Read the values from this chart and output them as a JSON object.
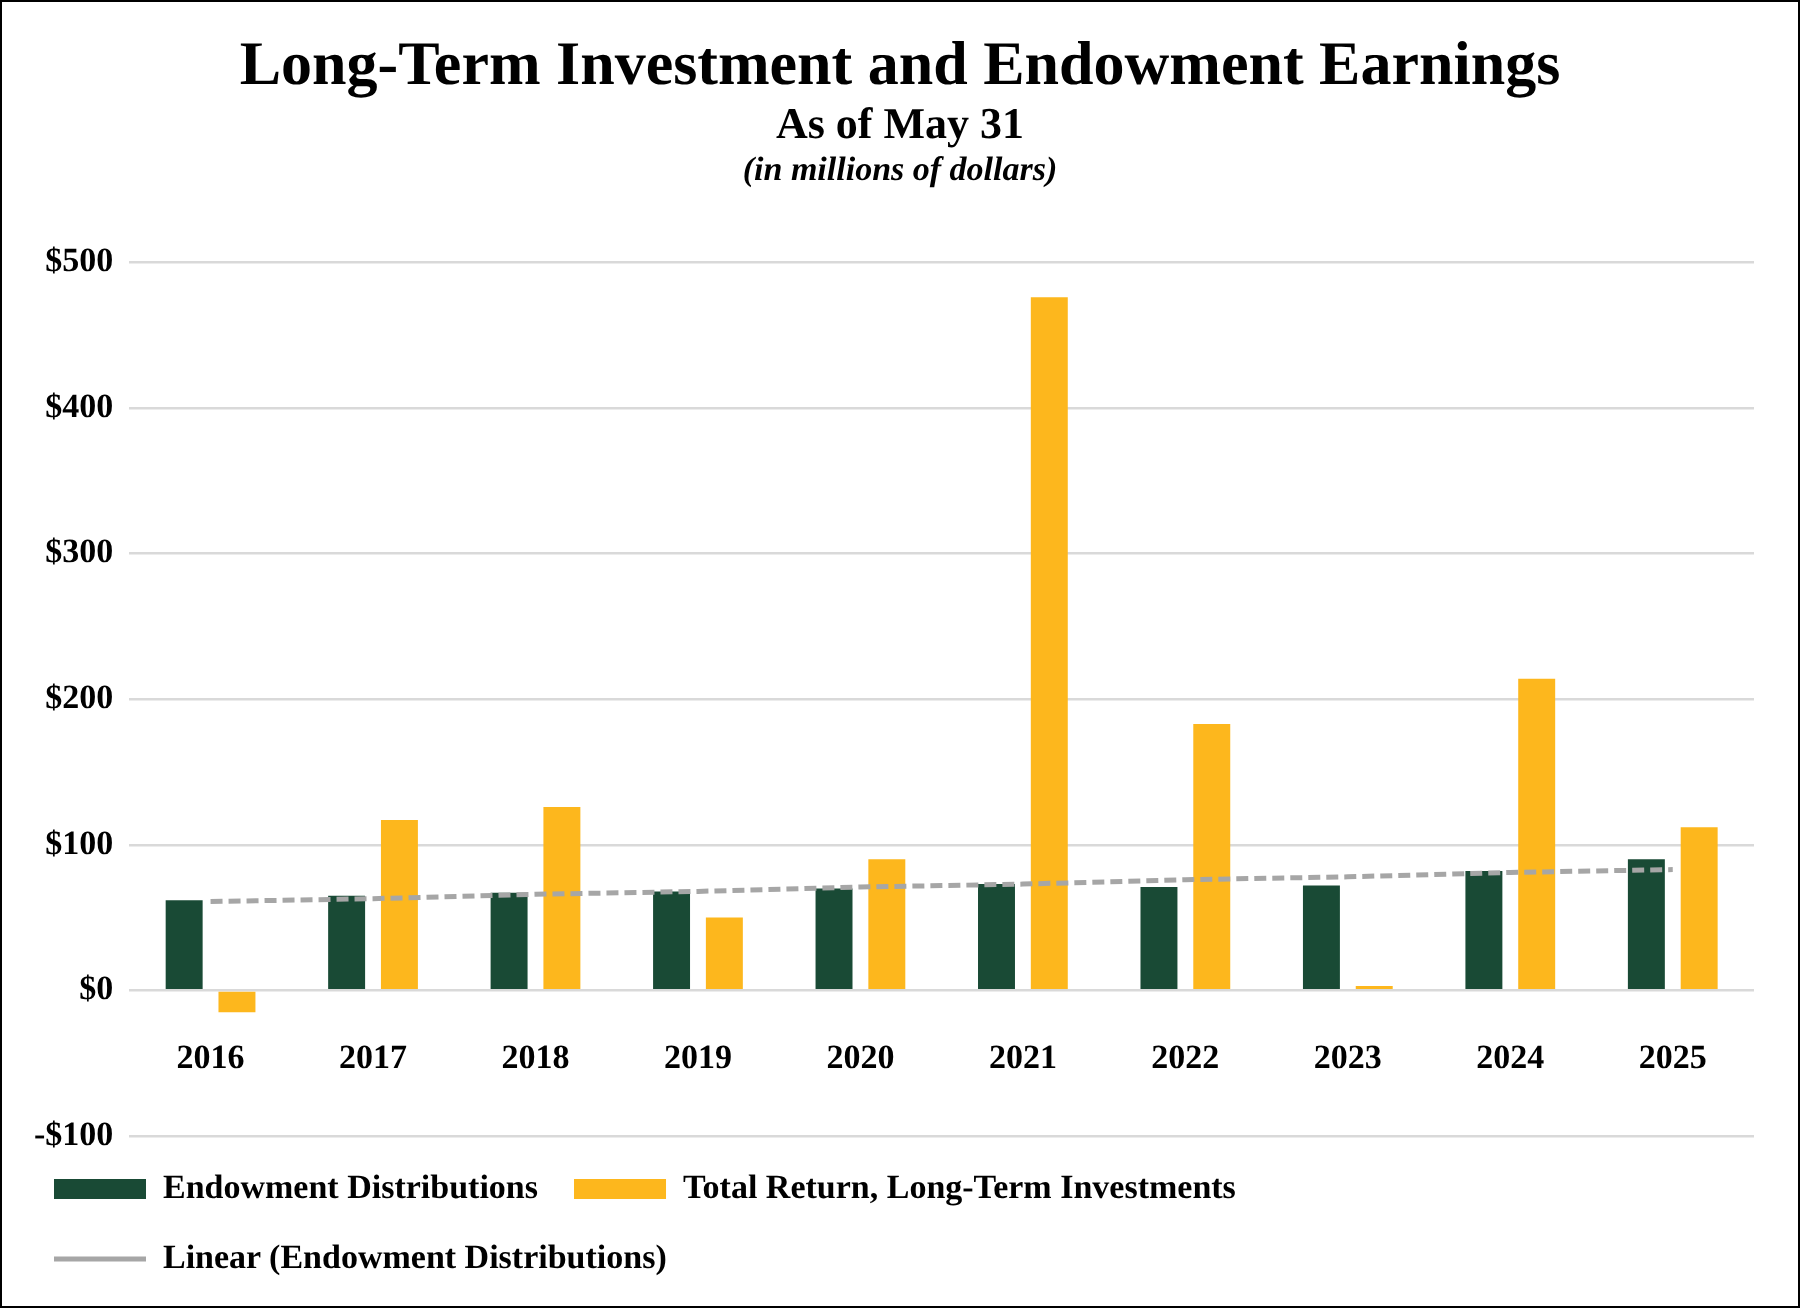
{
  "chart_data": {
    "type": "bar",
    "title": "Long-Term Investment and Endowment Earnings",
    "subtitle": "As of May 31",
    "annotations": [
      "(in millions of dollars)"
    ],
    "categories": [
      "2016",
      "2017",
      "2018",
      "2019",
      "2020",
      "2021",
      "2022",
      "2023",
      "2024",
      "2025"
    ],
    "series": [
      {
        "name": "Endowment Distributions",
        "color": "#194a35",
        "values": [
          62,
          65,
          67,
          68,
          70,
          73,
          71,
          72,
          82,
          90
        ]
      },
      {
        "name": "Total Return, Long-Term Investments",
        "color": "#fdb71d",
        "values": [
          -15,
          117,
          126,
          50,
          90,
          476,
          183,
          3,
          214,
          112
        ]
      },
      {
        "name": "Linear (Endowment Distributions)",
        "type": "line",
        "color": "#a6a6a6",
        "line_style": "dashed",
        "marker": "none",
        "values": [
          61,
          63,
          66,
          68,
          71,
          73,
          76,
          78,
          81,
          83
        ]
      }
    ],
    "ylim": [
      -100,
      500
    ],
    "yticks": [
      {
        "value": -100,
        "label": "-$100"
      },
      {
        "value": 0,
        "label": "$0"
      },
      {
        "value": 100,
        "label": "$100"
      },
      {
        "value": 200,
        "label": "$200"
      },
      {
        "value": 300,
        "label": "$300"
      },
      {
        "value": 400,
        "label": "$400"
      },
      {
        "value": 500,
        "label": "$500"
      }
    ],
    "grid": "y",
    "legend": "bottom"
  }
}
